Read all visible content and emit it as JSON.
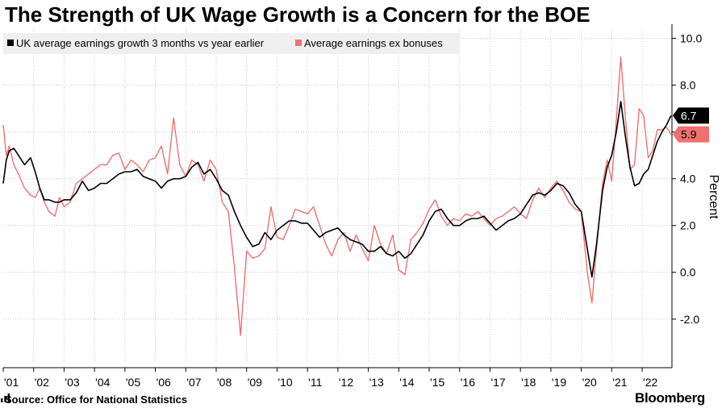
{
  "title": "The Strength of UK Wage Growth is a Concern for the BOE",
  "source": "Source: Office for National Statistics",
  "brand": "Bloomberg",
  "colors": {
    "series1": "#000000",
    "series2": "#f07070",
    "grid": "#c8c8c8",
    "legend_bg": "#efefef"
  },
  "chart_data": {
    "type": "line",
    "title": "The Strength of UK Wage Growth is a Concern for the BOE",
    "xlabel": "",
    "ylabel": "Percent",
    "xlim": [
      2001.0,
      2022.98
    ],
    "ylim": [
      -3.8,
      10.4
    ],
    "y_ticks": [
      10,
      8,
      6,
      4,
      2,
      0,
      -2
    ],
    "y_tick_labels": [
      "10.0",
      "8.0",
      "",
      "4.0",
      "2.0",
      "0.0",
      "-2.0"
    ],
    "x_ticks": [
      2001,
      2002,
      2003,
      2004,
      2005,
      2006,
      2007,
      2008,
      2009,
      2010,
      2011,
      2012,
      2013,
      2014,
      2015,
      2016,
      2017,
      2018,
      2019,
      2020,
      2021,
      2022
    ],
    "x_tick_labels": [
      "'01",
      "'02",
      "'03",
      "'04",
      "'05",
      "'06",
      "'07",
      "'08",
      "'09",
      "'10",
      "'11",
      "'12",
      "'13",
      "'14",
      "'15",
      "'16",
      "'17",
      "'18",
      "'19",
      "'20",
      "'21",
      "'22"
    ],
    "legend": [
      "UK average earnings growth 3 months vs year earlier",
      "Average earnings ex bonuses"
    ],
    "last_value_labels": [
      {
        "series": "UK average earnings growth 3 months vs year earlier",
        "value": "6.7"
      },
      {
        "series": "Average earnings ex bonuses",
        "value": "5.9"
      }
    ],
    "series": [
      {
        "name": "UK average earnings growth 3 months vs year earlier",
        "x": [
          2001.0,
          2001.1,
          2001.2,
          2001.35,
          2001.5,
          2001.7,
          2001.9,
          2002.05,
          2002.2,
          2002.35,
          2002.5,
          2002.7,
          2002.85,
          2003.0,
          2003.2,
          2003.4,
          2003.6,
          2003.8,
          2004.0,
          2004.2,
          2004.4,
          2004.6,
          2004.8,
          2005.0,
          2005.2,
          2005.4,
          2005.6,
          2005.8,
          2006.0,
          2006.2,
          2006.4,
          2006.6,
          2006.8,
          2007.0,
          2007.2,
          2007.4,
          2007.6,
          2007.8,
          2008.0,
          2008.2,
          2008.4,
          2008.6,
          2008.8,
          2009.0,
          2009.2,
          2009.4,
          2009.6,
          2009.8,
          2010.0,
          2010.2,
          2010.4,
          2010.6,
          2010.8,
          2011.0,
          2011.2,
          2011.4,
          2011.6,
          2011.8,
          2012.0,
          2012.2,
          2012.4,
          2012.6,
          2012.8,
          2013.0,
          2013.2,
          2013.4,
          2013.6,
          2013.8,
          2014.0,
          2014.2,
          2014.4,
          2014.6,
          2014.8,
          2015.0,
          2015.2,
          2015.4,
          2015.6,
          2015.8,
          2016.0,
          2016.2,
          2016.4,
          2016.6,
          2016.8,
          2017.0,
          2017.2,
          2017.4,
          2017.6,
          2017.8,
          2018.0,
          2018.2,
          2018.4,
          2018.6,
          2018.8,
          2019.0,
          2019.2,
          2019.4,
          2019.6,
          2019.8,
          2020.0,
          2020.2,
          2020.35,
          2020.5,
          2020.7,
          2020.85,
          2021.0,
          2021.15,
          2021.3,
          2021.45,
          2021.6,
          2021.75,
          2021.9,
          2022.05,
          2022.2,
          2022.35,
          2022.5,
          2022.65,
          2022.8,
          2022.95
        ],
        "values": [
          3.8,
          4.8,
          5.2,
          5.3,
          5.0,
          4.6,
          4.9,
          4.3,
          3.6,
          3.1,
          3.1,
          3.0,
          3.0,
          3.1,
          3.1,
          3.4,
          3.9,
          3.5,
          3.6,
          3.8,
          3.8,
          4.0,
          4.2,
          4.3,
          4.3,
          4.4,
          4.1,
          4.0,
          3.9,
          3.6,
          3.9,
          4.0,
          4.0,
          4.1,
          4.5,
          4.7,
          4.2,
          4.4,
          4.0,
          3.5,
          3.3,
          2.6,
          2.0,
          1.5,
          1.1,
          1.2,
          1.7,
          1.4,
          1.8,
          2.0,
          2.2,
          2.2,
          2.1,
          2.1,
          1.8,
          1.5,
          1.7,
          1.8,
          1.9,
          1.6,
          1.4,
          1.3,
          1.2,
          0.9,
          0.9,
          1.1,
          0.8,
          0.7,
          0.9,
          0.6,
          0.8,
          1.2,
          1.6,
          2.2,
          2.6,
          2.7,
          2.3,
          2.0,
          2.0,
          2.2,
          2.3,
          2.3,
          2.4,
          2.1,
          1.8,
          2.0,
          2.2,
          2.3,
          2.5,
          2.9,
          3.3,
          3.4,
          3.3,
          3.5,
          3.8,
          3.7,
          3.4,
          2.9,
          2.6,
          1.0,
          -0.2,
          1.2,
          3.5,
          4.5,
          5.0,
          6.0,
          7.3,
          5.8,
          4.5,
          3.7,
          3.8,
          4.2,
          4.4,
          5.0,
          5.6,
          6.0,
          6.3,
          6.7
        ]
      },
      {
        "name": "Average earnings ex bonuses",
        "x": [
          2001.0,
          2001.1,
          2001.2,
          2001.35,
          2001.5,
          2001.7,
          2001.9,
          2002.05,
          2002.2,
          2002.35,
          2002.5,
          2002.7,
          2002.85,
          2003.0,
          2003.2,
          2003.4,
          2003.6,
          2003.8,
          2004.0,
          2004.2,
          2004.4,
          2004.6,
          2004.8,
          2005.0,
          2005.2,
          2005.4,
          2005.6,
          2005.8,
          2006.0,
          2006.2,
          2006.4,
          2006.6,
          2006.8,
          2007.0,
          2007.2,
          2007.4,
          2007.6,
          2007.8,
          2008.0,
          2008.2,
          2008.4,
          2008.6,
          2008.8,
          2009.0,
          2009.2,
          2009.4,
          2009.6,
          2009.8,
          2010.0,
          2010.2,
          2010.4,
          2010.6,
          2010.8,
          2011.0,
          2011.2,
          2011.4,
          2011.6,
          2011.8,
          2012.0,
          2012.2,
          2012.4,
          2012.6,
          2012.8,
          2013.0,
          2013.2,
          2013.4,
          2013.6,
          2013.8,
          2014.0,
          2014.2,
          2014.4,
          2014.6,
          2014.8,
          2015.0,
          2015.2,
          2015.4,
          2015.6,
          2015.8,
          2016.0,
          2016.2,
          2016.4,
          2016.6,
          2016.8,
          2017.0,
          2017.2,
          2017.4,
          2017.6,
          2017.8,
          2018.0,
          2018.2,
          2018.4,
          2018.6,
          2018.8,
          2019.0,
          2019.2,
          2019.4,
          2019.6,
          2019.8,
          2020.0,
          2020.2,
          2020.35,
          2020.5,
          2020.7,
          2020.85,
          2021.0,
          2021.15,
          2021.3,
          2021.45,
          2021.6,
          2021.75,
          2021.9,
          2022.05,
          2022.2,
          2022.35,
          2022.5,
          2022.65,
          2022.8,
          2022.95
        ],
        "values": [
          6.3,
          5.0,
          5.4,
          4.6,
          4.2,
          3.6,
          3.3,
          3.2,
          3.6,
          3.0,
          2.6,
          2.4,
          3.2,
          2.8,
          3.0,
          3.8,
          4.0,
          4.2,
          4.4,
          4.6,
          4.6,
          5.0,
          5.1,
          4.4,
          4.8,
          4.6,
          4.3,
          4.8,
          4.9,
          5.4,
          4.2,
          6.6,
          4.6,
          4.1,
          4.8,
          4.6,
          3.9,
          4.8,
          4.4,
          3.0,
          2.6,
          0.2,
          -2.7,
          0.9,
          0.6,
          0.7,
          1.0,
          2.8,
          1.5,
          1.4,
          2.0,
          2.7,
          2.6,
          2.5,
          2.8,
          2.0,
          1.2,
          0.7,
          1.4,
          1.7,
          0.9,
          1.6,
          1.0,
          0.5,
          2.0,
          1.2,
          0.8,
          1.6,
          0.1,
          -0.1,
          1.4,
          1.7,
          2.1,
          2.7,
          3.1,
          2.4,
          2.0,
          2.3,
          2.2,
          2.5,
          2.4,
          2.6,
          2.3,
          2.0,
          2.3,
          2.4,
          2.6,
          2.8,
          2.5,
          2.3,
          3.1,
          3.6,
          3.2,
          3.6,
          3.9,
          3.5,
          3.0,
          2.7,
          2.6,
          0.0,
          -1.3,
          1.0,
          3.8,
          4.8,
          3.9,
          6.5,
          9.2,
          6.6,
          4.4,
          4.6,
          7.0,
          6.7,
          4.9,
          5.2,
          6.1,
          6.1,
          6.2,
          5.9
        ]
      }
    ]
  }
}
